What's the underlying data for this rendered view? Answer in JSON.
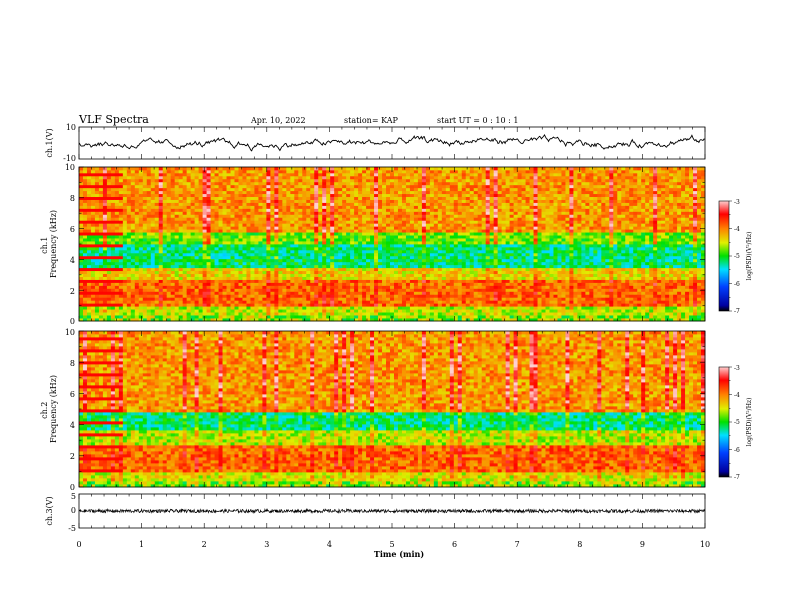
{
  "header": {
    "title": "VLF Spectra",
    "date": "Apr. 10, 2022",
    "station": "station= KAP",
    "start": "start  UT =  0 : 10 : 1"
  },
  "chart_data": [
    {
      "type": "line",
      "ylabel": "ch.1(V)",
      "ylim": [
        -10,
        10
      ],
      "yticks": [
        "10",
        "-10"
      ],
      "xlim": [
        0,
        10
      ],
      "series": [
        {
          "values_description": "noisy waveform oscillating around 0 V, roughly between -3 and +3 V",
          "color": "#000000"
        }
      ]
    },
    {
      "type": "heatmap",
      "ylabel": "ch.1\nFrequency (kHz)",
      "ylim": [
        0,
        10
      ],
      "yticks": [
        "0",
        "2",
        "4",
        "6",
        "8",
        "10"
      ],
      "xlim": [
        0,
        10
      ],
      "colorbar": {
        "label": "log(PSD)(V²/Hz)",
        "ticks": [
          "-3",
          "-4",
          "-5",
          "-6",
          "-7"
        ],
        "range": [
          -7,
          -3
        ]
      },
      "bands": [
        {
          "from": 0.0,
          "to": 1.0,
          "level": -4.6
        },
        {
          "from": 1.0,
          "to": 2.6,
          "level": -3.9
        },
        {
          "from": 2.6,
          "to": 3.4,
          "level": -4.4
        },
        {
          "from": 3.4,
          "to": 5.0,
          "level": -5.2
        },
        {
          "from": 5.0,
          "to": 5.7,
          "level": -4.8
        },
        {
          "from": 5.7,
          "to": 10.0,
          "level": -4.1
        }
      ]
    },
    {
      "type": "heatmap",
      "ylabel": "ch.2\nFrequency (kHz)",
      "ylim": [
        0,
        10
      ],
      "yticks": [
        "0",
        "2",
        "4",
        "6",
        "8",
        "10"
      ],
      "xlim": [
        0,
        10
      ],
      "colorbar": {
        "label": "log(PSD)(V²/Hz)",
        "ticks": [
          "-3",
          "-4",
          "-5",
          "-6",
          "-7"
        ],
        "range": [
          -7,
          -3
        ]
      },
      "bands": [
        {
          "from": 0.0,
          "to": 1.0,
          "level": -4.5
        },
        {
          "from": 1.0,
          "to": 2.6,
          "level": -3.9
        },
        {
          "from": 2.6,
          "to": 3.6,
          "level": -4.6
        },
        {
          "from": 3.6,
          "to": 4.8,
          "level": -5.2
        },
        {
          "from": 4.8,
          "to": 10.0,
          "level": -4.1
        }
      ]
    },
    {
      "type": "line",
      "ylabel": "ch.3(V)",
      "ylim": [
        -5,
        5
      ],
      "yticks": [
        "5",
        "0",
        "-5"
      ],
      "xlim": [
        0,
        10
      ],
      "xlabel": "Time (min)",
      "xticks": [
        "0",
        "1",
        "2",
        "3",
        "4",
        "5",
        "6",
        "7",
        "8",
        "9",
        "10"
      ],
      "series": [
        {
          "values_description": "dense thick band near 0 V (about -0.5 to 0.5 V) across the whole record",
          "color": "#000000"
        }
      ]
    }
  ]
}
